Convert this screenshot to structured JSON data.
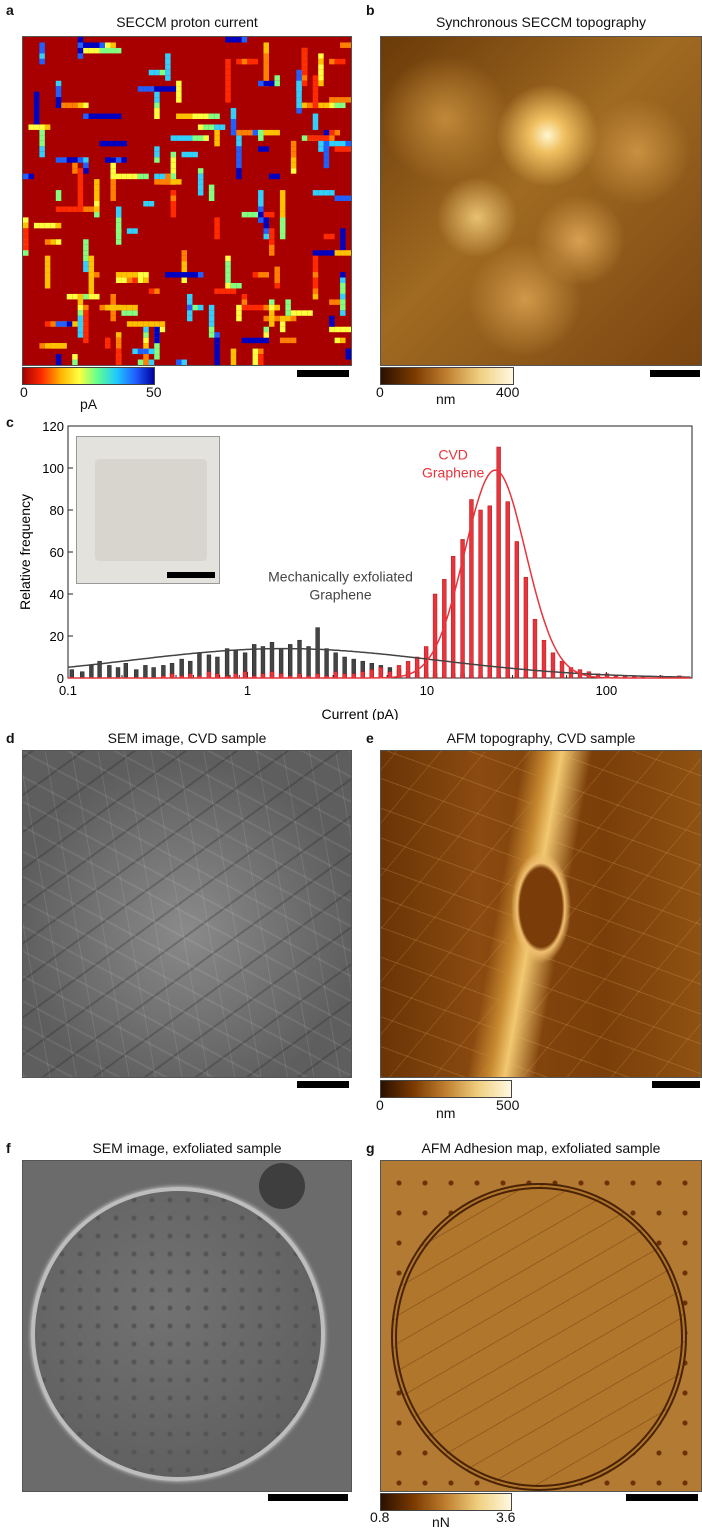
{
  "panels": {
    "a": {
      "label": "a",
      "title": "SECCM proton current",
      "colorbar": {
        "min": "0",
        "max": "50",
        "unit": "pA"
      }
    },
    "b": {
      "label": "b",
      "title": "Synchronous SECCM topography",
      "colorbar": {
        "min": "0",
        "max": "400",
        "unit": "nm"
      }
    },
    "c": {
      "label": "c"
    },
    "d": {
      "label": "d",
      "title": "SEM image, CVD sample"
    },
    "e": {
      "label": "e",
      "title": "AFM topography, CVD sample",
      "colorbar": {
        "min": "0",
        "max": "500",
        "unit": "nm"
      }
    },
    "f": {
      "label": "f",
      "title": "SEM image, exfoliated sample"
    },
    "g": {
      "label": "g",
      "title": "AFM Adhesion map, exfoliated sample",
      "colorbar": {
        "min": "0.8",
        "max": "3.6",
        "unit": "nN"
      }
    }
  },
  "colors": {
    "cvd_red": "#e8343a",
    "exfoliated_gray": "#444444",
    "current_map_bg": "#a80000",
    "topography_dark": "#3a1a00",
    "topography_light": "#fff3c0",
    "sem_gray": "#6a6a6a"
  },
  "chart_data": {
    "type": "bar",
    "xlabel": "Current (pA)",
    "ylabel": "Relative frequency",
    "xscale": "log",
    "xlim": [
      0.1,
      300
    ],
    "ylim": [
      0,
      120
    ],
    "xticks": [
      "0.1",
      "1",
      "10",
      "100"
    ],
    "yticks": [
      "0",
      "20",
      "40",
      "60",
      "80",
      "100",
      "120"
    ],
    "annotations": [
      {
        "text": [
          "CVD",
          "Graphene"
        ],
        "series": "CVD Graphene"
      },
      {
        "text": [
          "Mechanically exfoliated",
          "Graphene"
        ],
        "series": "Mechanically exfoliated Graphene"
      }
    ],
    "series": [
      {
        "name": "Mechanically exfoliated Graphene",
        "color": "#444444",
        "x": [
          0.105,
          0.12,
          0.135,
          0.15,
          0.17,
          0.19,
          0.21,
          0.24,
          0.27,
          0.3,
          0.34,
          0.38,
          0.43,
          0.48,
          0.54,
          0.61,
          0.68,
          0.77,
          0.86,
          0.97,
          1.09,
          1.22,
          1.37,
          1.54,
          1.73,
          1.95,
          2.19,
          2.46,
          2.76,
          3.1,
          3.48,
          3.91,
          4.39,
          4.93,
          5.54,
          6.22,
          6.99,
          7.85,
          8.82,
          9.9,
          11.1,
          12.5,
          14.0,
          15.8,
          17.7,
          19.9,
          22.4,
          25.1,
          28.2,
          31.7,
          35.6,
          40.0,
          44.9,
          50.4,
          56.6
        ],
        "values": [
          4,
          3,
          6,
          8,
          6,
          5,
          7,
          4,
          6,
          5,
          6,
          7,
          9,
          8,
          12,
          11,
          10,
          14,
          13,
          12,
          16,
          15,
          17,
          14,
          16,
          18,
          15,
          24,
          14,
          12,
          10,
          9,
          8,
          7,
          6,
          5,
          4,
          3,
          3,
          2,
          2,
          1,
          2,
          2,
          1,
          1,
          1,
          1,
          1,
          1,
          1,
          0,
          0,
          0,
          0
        ],
        "fit": {
          "type": "gaussian-log",
          "peak": 14,
          "center": 1.6,
          "width_decades": 0.85
        }
      },
      {
        "name": "CVD Graphene",
        "color": "#e8343a",
        "x": [
          0.34,
          0.38,
          0.43,
          0.48,
          0.54,
          0.61,
          0.68,
          0.77,
          0.86,
          0.97,
          1.09,
          1.22,
          1.37,
          1.54,
          1.73,
          1.95,
          2.19,
          2.46,
          2.76,
          3.1,
          3.48,
          3.91,
          4.39,
          4.93,
          5.54,
          6.22,
          6.99,
          7.85,
          8.82,
          9.9,
          11.1,
          12.5,
          14.0,
          15.8,
          17.7,
          19.9,
          22.4,
          25.1,
          28.2,
          31.7,
          35.6,
          40.0,
          44.9,
          50.4,
          56.6,
          63.5,
          71.3,
          80.0,
          89.8,
          100.8,
          113,
          127,
          143,
          160,
          180,
          202,
          227,
          255
        ],
        "values": [
          1,
          2,
          1,
          2,
          1,
          3,
          2,
          1,
          2,
          3,
          1,
          2,
          3,
          2,
          1,
          2,
          1,
          2,
          1,
          3,
          2,
          2,
          3,
          4,
          5,
          3,
          6,
          8,
          10,
          15,
          40,
          47,
          58,
          66,
          85,
          80,
          82,
          110,
          84,
          65,
          48,
          28,
          18,
          12,
          8,
          5,
          4,
          3,
          2,
          2,
          1,
          1,
          1,
          1,
          0,
          1,
          0,
          1
        ],
        "fit": {
          "type": "gaussian-log",
          "peak": 99,
          "center": 24,
          "width_decades": 0.17
        }
      }
    ]
  }
}
